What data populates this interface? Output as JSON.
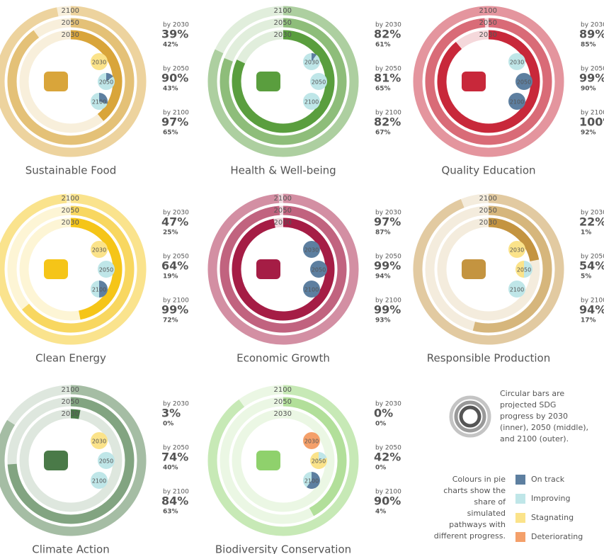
{
  "chart_data": [
    {
      "type": "radial-bar",
      "title": "Sustainable Food",
      "color": "#d9a53a",
      "ylim": [
        0,
        100
      ],
      "categories": [
        "2030",
        "2050",
        "2100"
      ],
      "category_labels": [
        "by 2030",
        "by 2050",
        "by 2100"
      ],
      "values": [
        39,
        90,
        97
      ],
      "value_labels": [
        "39%",
        "90%",
        "97%"
      ],
      "alt_values": [
        42,
        43,
        65
      ],
      "alt_value_labels": [
        "42%",
        "43%",
        "65%"
      ],
      "pies": [
        [
          0,
          0,
          100,
          0
        ],
        [
          15,
          85,
          0,
          0
        ],
        [
          30,
          70,
          0,
          0
        ]
      ]
    },
    {
      "type": "radial-bar",
      "title": "Health & Well-being",
      "color": "#5a9e3e",
      "ylim": [
        0,
        100
      ],
      "categories": [
        "2030",
        "2050",
        "2100"
      ],
      "category_labels": [
        "by 2030",
        "by 2050",
        "by 2100"
      ],
      "values": [
        82,
        81,
        82
      ],
      "value_labels": [
        "82%",
        "81%",
        "82%"
      ],
      "alt_values": [
        61,
        65,
        67
      ],
      "alt_value_labels": [
        "61%",
        "65%",
        "67%"
      ],
      "pies": [
        [
          10,
          90,
          0,
          0
        ],
        [
          0,
          100,
          0,
          0
        ],
        [
          0,
          100,
          0,
          0
        ]
      ]
    },
    {
      "type": "radial-bar",
      "title": "Quality Education",
      "color": "#c8283a",
      "ylim": [
        0,
        100
      ],
      "categories": [
        "2030",
        "2050",
        "2100"
      ],
      "category_labels": [
        "by 2030",
        "by 2050",
        "by 2100"
      ],
      "values": [
        89,
        99,
        100
      ],
      "value_labels": [
        "89%",
        "99%",
        "100%"
      ],
      "alt_values": [
        85,
        90,
        92
      ],
      "alt_value_labels": [
        "85%",
        "90%",
        "92%"
      ],
      "pies": [
        [
          0,
          100,
          0,
          0
        ],
        [
          100,
          0,
          0,
          0
        ],
        [
          100,
          0,
          0,
          0
        ]
      ]
    },
    {
      "type": "radial-bar",
      "title": "Clean Energy",
      "color": "#f5c518",
      "ylim": [
        0,
        100
      ],
      "categories": [
        "2030",
        "2050",
        "2100"
      ],
      "category_labels": [
        "by 2030",
        "by 2050",
        "by 2100"
      ],
      "values": [
        47,
        64,
        99
      ],
      "value_labels": [
        "47%",
        "64%",
        "99%"
      ],
      "alt_values": [
        25,
        19,
        72
      ],
      "alt_value_labels": [
        "25%",
        "19%",
        "72%"
      ],
      "pies": [
        [
          0,
          0,
          100,
          0
        ],
        [
          0,
          100,
          0,
          0
        ],
        [
          50,
          50,
          0,
          0
        ]
      ]
    },
    {
      "type": "radial-bar",
      "title": "Economic Growth",
      "color": "#a51d45",
      "ylim": [
        0,
        100
      ],
      "categories": [
        "2030",
        "2050",
        "2100"
      ],
      "category_labels": [
        "by 2030",
        "by 2050",
        "by 2100"
      ],
      "values": [
        97,
        99,
        99
      ],
      "value_labels": [
        "97%",
        "99%",
        "99%"
      ],
      "alt_values": [
        87,
        94,
        93
      ],
      "alt_value_labels": [
        "87%",
        "94%",
        "93%"
      ],
      "pies": [
        [
          100,
          0,
          0,
          0
        ],
        [
          100,
          0,
          0,
          0
        ],
        [
          100,
          0,
          0,
          0
        ]
      ]
    },
    {
      "type": "radial-bar",
      "title": "Responsible Production",
      "color": "#c49440",
      "ylim": [
        0,
        100
      ],
      "categories": [
        "2030",
        "2050",
        "2100"
      ],
      "category_labels": [
        "by 2030",
        "by 2050",
        "by 2100"
      ],
      "values": [
        22,
        54,
        94
      ],
      "value_labels": [
        "22%",
        "54%",
        "94%"
      ],
      "alt_values": [
        1,
        5,
        17
      ],
      "alt_value_labels": [
        "1%",
        "5%",
        "17%"
      ],
      "pies": [
        [
          0,
          0,
          100,
          0
        ],
        [
          0,
          50,
          50,
          0
        ],
        [
          0,
          100,
          0,
          0
        ]
      ]
    },
    {
      "type": "radial-bar",
      "title": "Climate Action",
      "color": "#4a7a48",
      "ylim": [
        0,
        100
      ],
      "categories": [
        "2030",
        "2050",
        "2100"
      ],
      "category_labels": [
        "by 2030",
        "by 2050",
        "by 2100"
      ],
      "values": [
        3,
        74,
        84
      ],
      "value_labels": [
        "3%",
        "74%",
        "84%"
      ],
      "alt_values": [
        0,
        40,
        63
      ],
      "alt_value_labels": [
        "0%",
        "40%",
        "63%"
      ],
      "pies": [
        [
          0,
          0,
          100,
          0
        ],
        [
          0,
          100,
          0,
          0
        ],
        [
          0,
          100,
          0,
          0
        ]
      ]
    },
    {
      "type": "radial-bar",
      "title": "Biodiversity Conservation",
      "color": "#8fd16c",
      "ylim": [
        0,
        100
      ],
      "categories": [
        "2030",
        "2050",
        "2100"
      ],
      "category_labels": [
        "by 2030",
        "by 2050",
        "by 2100"
      ],
      "values": [
        0,
        42,
        90
      ],
      "value_labels": [
        "0%",
        "42%",
        "90%"
      ],
      "alt_values": [
        0,
        0,
        4
      ],
      "alt_value_labels": [
        "0%",
        "0%",
        "4%"
      ],
      "pies": [
        [
          0,
          0,
          0,
          100
        ],
        [
          0,
          20,
          80,
          0
        ],
        [
          60,
          40,
          0,
          0
        ]
      ]
    }
  ],
  "legend": {
    "ring_note": [
      "Circular bars are",
      "projected SDG",
      "progress by 2030",
      "(inner), 2050 (middle),",
      "and 2100 (outer)."
    ],
    "pie_note": [
      "Colours in pie",
      "charts show the",
      "share of",
      "simulated",
      "pathways with",
      "different progress."
    ],
    "statuses": [
      {
        "name": "On track",
        "color": "#5d7fa0"
      },
      {
        "name": "Improving",
        "color": "#bfe6e8"
      },
      {
        "name": "Stagnating",
        "color": "#fbe38a"
      },
      {
        "name": "Deteriorating",
        "color": "#f4a06a"
      }
    ]
  }
}
